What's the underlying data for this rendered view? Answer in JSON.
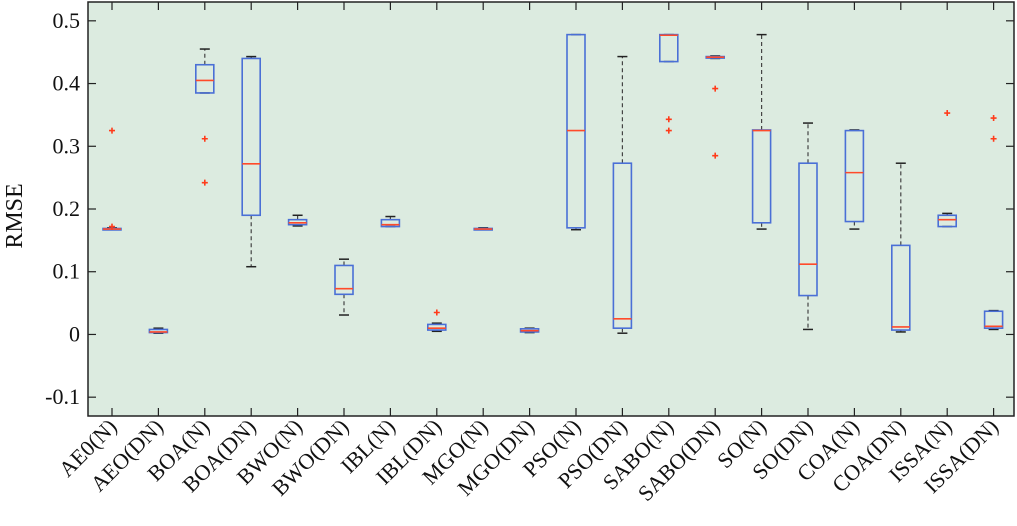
{
  "chart_data": {
    "type": "box",
    "title": "",
    "xlabel": "",
    "ylabel": "RMSE",
    "ylim": [
      -0.13,
      0.53
    ],
    "yticks": [
      -0.1,
      0,
      0.1,
      0.2,
      0.3,
      0.4,
      0.5
    ],
    "ytick_labels": [
      "-0.1",
      "0",
      "0.1",
      "0.2",
      "0.3",
      "0.4",
      "0.5"
    ],
    "grid": false,
    "categories": [
      "AE0(N)",
      "AEO(DN)",
      "BOA(N)",
      "BOA(DN)",
      "BWO(N)",
      "BWO(DN)",
      "IBL(N)",
      "IBL(DN)",
      "MGO(N)",
      "MGO(DN)",
      "PSO(N)",
      "PSO(DN)",
      "SABO(N)",
      "SABO(DN)",
      "SO(N)",
      "SO(DN)",
      "COA(N)",
      "COA(DN)",
      "ISSA(N)",
      "ISSA(DN)"
    ],
    "boxes": [
      {
        "whisker_low": 0.167,
        "q1": 0.167,
        "median": 0.168,
        "q3": 0.169,
        "whisker_high": 0.17,
        "outliers": [
          0.325,
          0.172
        ]
      },
      {
        "whisker_low": 0.002,
        "q1": 0.003,
        "median": 0.004,
        "q3": 0.008,
        "whisker_high": 0.01,
        "outliers": []
      },
      {
        "whisker_low": 0.385,
        "q1": 0.385,
        "median": 0.405,
        "q3": 0.43,
        "whisker_high": 0.455,
        "outliers": [
          0.312,
          0.242
        ]
      },
      {
        "whisker_low": 0.108,
        "q1": 0.19,
        "median": 0.272,
        "q3": 0.44,
        "whisker_high": 0.443,
        "outliers": []
      },
      {
        "whisker_low": 0.173,
        "q1": 0.175,
        "median": 0.178,
        "q3": 0.183,
        "whisker_high": 0.19,
        "outliers": []
      },
      {
        "whisker_low": 0.031,
        "q1": 0.064,
        "median": 0.073,
        "q3": 0.11,
        "whisker_high": 0.12,
        "outliers": []
      },
      {
        "whisker_low": 0.172,
        "q1": 0.172,
        "median": 0.175,
        "q3": 0.183,
        "whisker_high": 0.188,
        "outliers": []
      },
      {
        "whisker_low": 0.005,
        "q1": 0.007,
        "median": 0.01,
        "q3": 0.016,
        "whisker_high": 0.018,
        "outliers": [
          0.035
        ]
      },
      {
        "whisker_low": 0.167,
        "q1": 0.167,
        "median": 0.168,
        "q3": 0.169,
        "whisker_high": 0.17,
        "outliers": []
      },
      {
        "whisker_low": 0.003,
        "q1": 0.004,
        "median": 0.006,
        "q3": 0.009,
        "whisker_high": 0.01,
        "outliers": []
      },
      {
        "whisker_low": 0.167,
        "q1": 0.17,
        "median": 0.325,
        "q3": 0.478,
        "whisker_high": 0.478,
        "outliers": []
      },
      {
        "whisker_low": 0.002,
        "q1": 0.01,
        "median": 0.025,
        "q3": 0.273,
        "whisker_high": 0.443,
        "outliers": []
      },
      {
        "whisker_low": 0.435,
        "q1": 0.435,
        "median": 0.477,
        "q3": 0.478,
        "whisker_high": 0.478,
        "outliers": [
          0.343,
          0.325
        ]
      },
      {
        "whisker_low": 0.44,
        "q1": 0.441,
        "median": 0.442,
        "q3": 0.443,
        "whisker_high": 0.444,
        "outliers": [
          0.392,
          0.285
        ]
      },
      {
        "whisker_low": 0.168,
        "q1": 0.178,
        "median": 0.325,
        "q3": 0.326,
        "whisker_high": 0.478,
        "outliers": []
      },
      {
        "whisker_low": 0.008,
        "q1": 0.062,
        "median": 0.112,
        "q3": 0.273,
        "whisker_high": 0.337,
        "outliers": []
      },
      {
        "whisker_low": 0.168,
        "q1": 0.18,
        "median": 0.258,
        "q3": 0.325,
        "whisker_high": 0.326,
        "outliers": []
      },
      {
        "whisker_low": 0.004,
        "q1": 0.007,
        "median": 0.012,
        "q3": 0.142,
        "whisker_high": 0.273,
        "outliers": []
      },
      {
        "whisker_low": 0.172,
        "q1": 0.172,
        "median": 0.183,
        "q3": 0.19,
        "whisker_high": 0.193,
        "outliers": [
          0.353
        ]
      },
      {
        "whisker_low": 0.008,
        "q1": 0.01,
        "median": 0.013,
        "q3": 0.037,
        "whisker_high": 0.038,
        "outliers": [
          0.345,
          0.312
        ]
      }
    ],
    "colors": {
      "plot_background": "#dcebe0",
      "box": "#4a6fd6",
      "median": "#ff4a2a",
      "outlier": "#ff3b1a",
      "whisker": "#444444",
      "axis": "#222222"
    }
  }
}
